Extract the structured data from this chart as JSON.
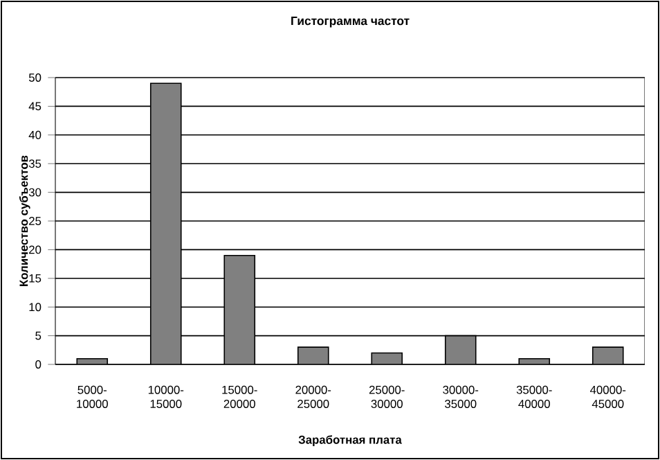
{
  "chart_data": {
    "type": "bar",
    "title": "Гистограмма частот",
    "xlabel": "Заработная плата",
    "ylabel": "Количество субъектов",
    "categories": [
      "5000-10000",
      "10000-15000",
      "15000-20000",
      "20000-25000",
      "25000-30000",
      "30000-35000",
      "35000-40000",
      "40000-45000"
    ],
    "values": [
      1,
      49,
      19,
      3,
      2,
      5,
      1,
      3
    ],
    "color": "#808080",
    "ylim": [
      0,
      50
    ],
    "yticks": [
      0,
      5,
      10,
      15,
      20,
      25,
      30,
      35,
      40,
      45,
      50
    ],
    "grid": "y"
  }
}
